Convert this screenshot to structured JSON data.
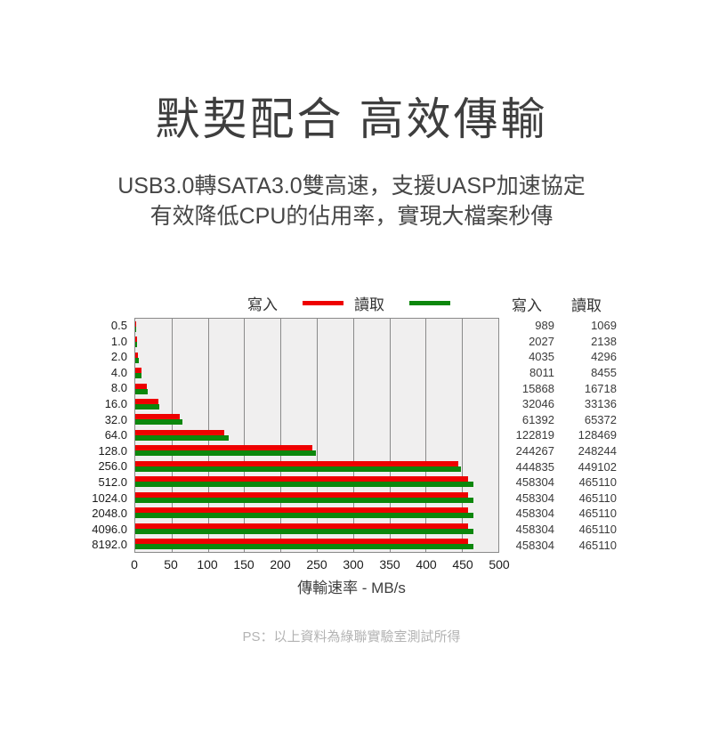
{
  "page": {
    "title": "默契配合 高效傳輸",
    "subtitle_line1": "USB3.0轉SATA3.0雙高速，支援UASP加速協定",
    "subtitle_line2": "有效降低CPU的佔用率，實現大檔案秒傳",
    "footnote": "PS：以上資料為綠聯實驗室測試所得"
  },
  "colors": {
    "write_red": "#ee0000",
    "read_green": "#0c870c",
    "plot_background": "#f0efef",
    "gridline_gray": "#8a8a8a",
    "heading_text": "#3e3e3e",
    "footnote_gray": "#b3b3b3"
  },
  "chart_data": {
    "type": "bar",
    "orientation": "horizontal",
    "title": "",
    "xlabel": "傳輸速率 - MB/s",
    "ylabel": "",
    "xlim": [
      0,
      500
    ],
    "xticks": [
      0,
      50,
      100,
      150,
      200,
      250,
      300,
      350,
      400,
      450,
      500
    ],
    "grid": true,
    "legend_position": "top",
    "categories": [
      "0.5",
      "1.0",
      "2.0",
      "4.0",
      "8.0",
      "16.0",
      "32.0",
      "64.0",
      "128.0",
      "256.0",
      "512.0",
      "1024.0",
      "2048.0",
      "4096.0",
      "8192.0"
    ],
    "series": [
      {
        "name": "寫入",
        "color": "#ee0000",
        "values_mb": [
          0.989,
          2.027,
          4.035,
          8.011,
          15.868,
          32.046,
          61.392,
          122.819,
          244.267,
          444.835,
          458.304,
          458.304,
          458.304,
          458.304,
          458.304
        ]
      },
      {
        "name": "讀取",
        "color": "#0c870c",
        "values_mb": [
          1.069,
          2.138,
          4.296,
          8.455,
          16.718,
          33.136,
          65.372,
          128.469,
          248.244,
          449.102,
          465.11,
          465.11,
          465.11,
          465.11,
          465.11
        ]
      }
    ]
  },
  "data_table": {
    "headers": [
      "寫入",
      "讀取"
    ],
    "rows": [
      [
        989,
        1069
      ],
      [
        2027,
        2138
      ],
      [
        4035,
        4296
      ],
      [
        8011,
        8455
      ],
      [
        15868,
        16718
      ],
      [
        32046,
        33136
      ],
      [
        61392,
        65372
      ],
      [
        122819,
        128469
      ],
      [
        244267,
        248244
      ],
      [
        444835,
        449102
      ],
      [
        458304,
        465110
      ],
      [
        458304,
        465110
      ],
      [
        458304,
        465110
      ],
      [
        458304,
        465110
      ],
      [
        458304,
        465110
      ]
    ]
  }
}
